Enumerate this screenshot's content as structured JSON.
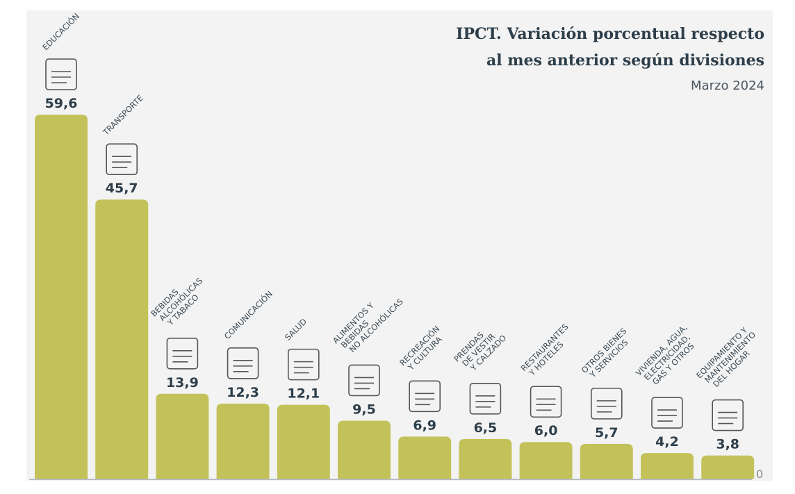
{
  "title_lines": [
    "IPCT. Variación porcentual respecto",
    "al mes anterior según divisiones"
  ],
  "subtitle": "Marzo 2024",
  "chart_data": {
    "type": "bar",
    "categories": [
      [
        "EDUCACIÓN"
      ],
      [
        "TRANSPORTE"
      ],
      [
        "BEBIDAS",
        "ALCOHÓLICAS",
        "Y TABACO"
      ],
      [
        "COMUNICACIÓN"
      ],
      [
        "SALUD"
      ],
      [
        "ALIMENTOS Y",
        "BEBIDAS",
        "NO ALCOHÓLICAS"
      ],
      [
        "RECREACIÓN",
        "Y CULTURA"
      ],
      [
        "PRENDAS",
        "DE VESTIR",
        "Y CALZADO"
      ],
      [
        "RESTAURANTES",
        "Y HOTELES"
      ],
      [
        "OTROS BIENES",
        "Y SERVICIOS"
      ],
      [
        "VIVIENDA, AGUA,",
        "ELECTRICIDAD,",
        "GAS Y OTROS"
      ],
      [
        "EQUIPAMIENTO Y",
        "MANTENIMIENTO",
        "DEL HOGAR"
      ]
    ],
    "values": [
      59.6,
      45.7,
      13.9,
      12.3,
      12.1,
      9.5,
      6.9,
      6.5,
      6.0,
      5.7,
      4.2,
      3.8
    ],
    "value_labels": [
      "59,6",
      "45,7",
      "13,9",
      "12,3",
      "12,1",
      "9,5",
      "6,9",
      "6,5",
      "6,0",
      "5,7",
      "4,2",
      "3,8"
    ],
    "icons": [
      "diploma-icon",
      "bus-icon",
      "bottle-glass-icon",
      "phone-icon",
      "hospital-icon",
      "food-bowl-icon",
      "camera-icon",
      "clothes-icon",
      "plate-luggage-icon",
      "scissors-icon",
      "house-document-icon",
      "microwave-icon"
    ],
    "baseline_label": "0",
    "ylim": [
      0,
      60
    ],
    "grid": false,
    "bar_color": "#c3c25a",
    "text_color": "#2d3e4a"
  }
}
